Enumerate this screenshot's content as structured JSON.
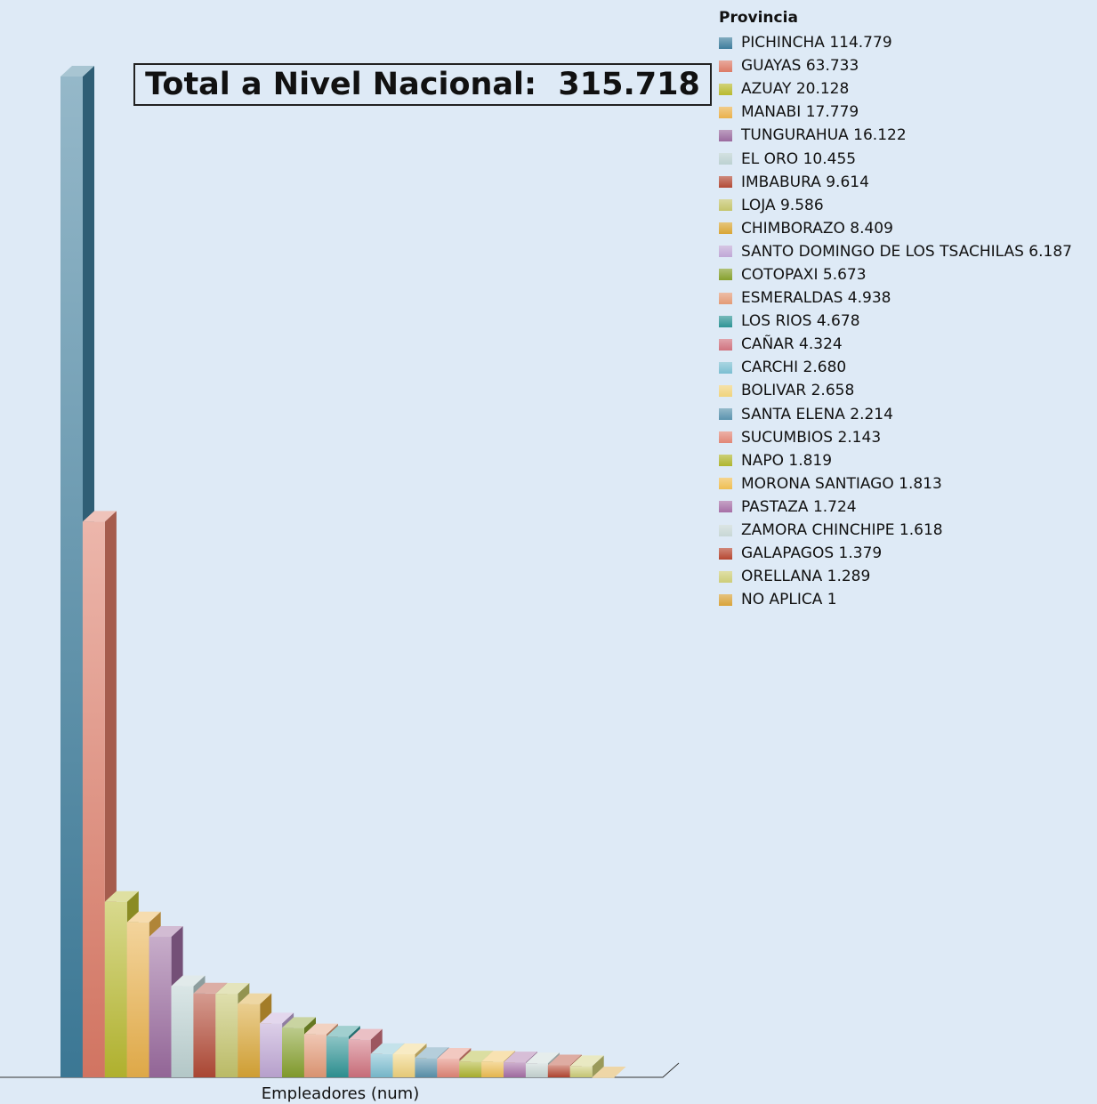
{
  "chart_data": {
    "type": "bar",
    "title": "Total a Nivel Nacional:  315.718",
    "xlabel": "Empleadores (num)",
    "ylabel": "",
    "legend_title": "Provincia",
    "legend_position": "right",
    "grid": false,
    "ylim": [
      0,
      114779
    ],
    "categories": [
      "PICHINCHA",
      "GUAYAS",
      "AZUAY",
      "MANABI",
      "TUNGURAHUA",
      "EL ORO",
      "IMBABURA",
      "LOJA",
      "CHIMBORAZO",
      "SANTO DOMINGO DE LOS TSACHILAS",
      "COTOPAXI",
      "ESMERALDAS",
      "LOS RIOS",
      "CAÑAR",
      "CARCHI",
      "BOLIVAR",
      "SANTA ELENA",
      "SUCUMBIOS",
      "NAPO",
      "MORONA SANTIAGO",
      "PASTAZA",
      "ZAMORA CHINCHIPE",
      "GALAPAGOS",
      "ORELLANA",
      "NO APLICA"
    ],
    "values": [
      114779,
      63733,
      20128,
      17779,
      16122,
      10455,
      9614,
      9586,
      8409,
      6187,
      5673,
      4938,
      4678,
      4324,
      2680,
      2658,
      2214,
      2143,
      1819,
      1813,
      1724,
      1618,
      1379,
      1289,
      1
    ],
    "legend_labels": [
      "PICHINCHA 114.779",
      "GUAYAS 63.733",
      "AZUAY 20.128",
      "MANABI 17.779",
      "TUNGURAHUA 16.122",
      "EL ORO 10.455",
      "IMBABURA 9.614",
      "LOJA 9.586",
      "CHIMBORAZO 8.409",
      "SANTO DOMINGO DE LOS TSACHILAS 6.187",
      "COTOPAXI 5.673",
      "ESMERALDAS 4.938",
      "LOS RIOS 4.678",
      "CAÑAR 4.324",
      "CARCHI 2.680",
      "BOLIVAR 2.658",
      "SANTA ELENA 2.214",
      "SUCUMBIOS 2.143",
      "NAPO 1.819",
      "MORONA SANTIAGO 1.813",
      "PASTAZA 1.724",
      "ZAMORA CHINCHIPE 1.618",
      "GALAPAGOS 1.379",
      "ORELLANA 1.289",
      "NO APLICA 1"
    ],
    "colors": [
      "#3e7d9c",
      "#dc7a66",
      "#b8b92f",
      "#eab14b",
      "#9a6a9e",
      "#bcd1d1",
      "#b24a36",
      "#c4c46b",
      "#d9a535",
      "#c0a7d6",
      "#86a02d",
      "#e39a76",
      "#2e9495",
      "#d0727e",
      "#7bbed1",
      "#f0d37c",
      "#5b93ae",
      "#e18676",
      "#afb52f",
      "#efbe52",
      "#a66fa6",
      "#c8d7d5",
      "#b64731",
      "#cdcd78",
      "#d9a33a"
    ]
  }
}
